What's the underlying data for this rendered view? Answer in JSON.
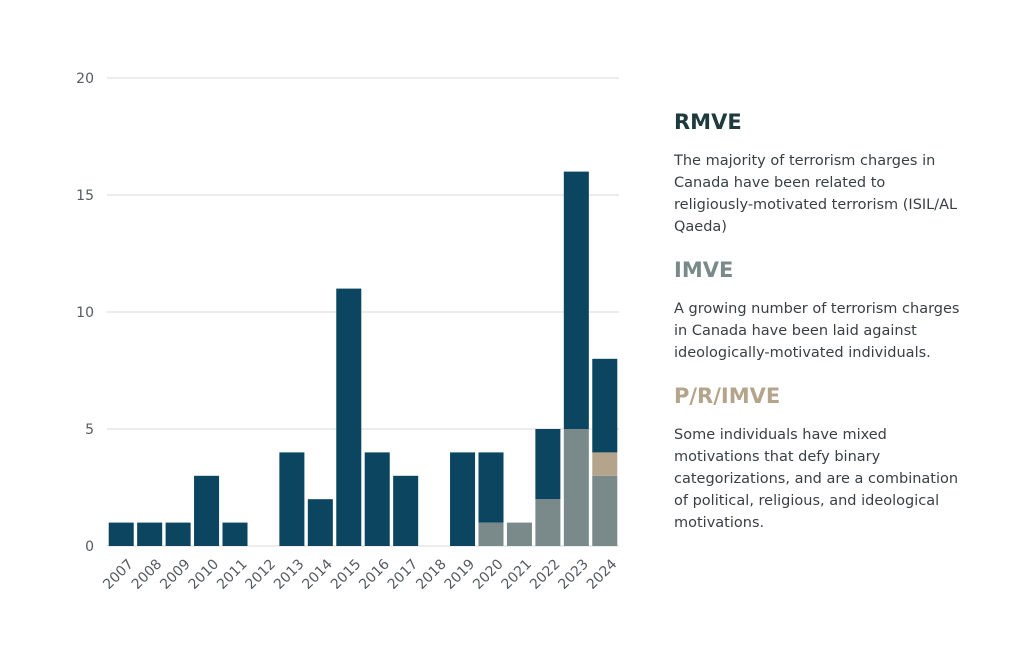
{
  "chart_data": {
    "type": "bar",
    "stacked": true,
    "categories": [
      "2007",
      "2008",
      "2009",
      "2010",
      "2011",
      "2012",
      "2013",
      "2014",
      "2015",
      "2016",
      "2017",
      "2018",
      "2019",
      "2020",
      "2021",
      "2022",
      "2023",
      "2024"
    ],
    "series": [
      {
        "name": "IMVE",
        "color": "#7a8a8a",
        "values": [
          0,
          0,
          0,
          0,
          0,
          0,
          0,
          0,
          0,
          0,
          0,
          0,
          0,
          1,
          1,
          2,
          5,
          3
        ]
      },
      {
        "name": "P/R/IMVE",
        "color": "#b5a48c",
        "values": [
          0,
          0,
          0,
          0,
          0,
          0,
          0,
          0,
          0,
          0,
          0,
          0,
          0,
          0,
          0,
          0,
          0,
          1
        ]
      },
      {
        "name": "RMVE",
        "color": "#0b4560",
        "values": [
          1,
          1,
          1,
          3,
          1,
          0,
          4,
          2,
          11,
          4,
          3,
          0,
          4,
          3,
          0,
          3,
          11,
          4
        ]
      }
    ],
    "yticks": [
      0,
      5,
      10,
      15,
      20
    ],
    "ylim": [
      0,
      20
    ],
    "grid": true
  },
  "legend": [
    {
      "title": "RMVE",
      "color": "#1e3a3d",
      "description": "The majority of terrorism charges in Canada have been related to religiously-motivated terrorism (ISIL/AL Qaeda)"
    },
    {
      "title": "IMVE",
      "color": "#7a8a8a",
      "description": "A growing number of terrorism charges in Canada have been laid against ideologically-motivated individuals."
    },
    {
      "title": "P/R/IMVE",
      "color": "#b5a48c",
      "description": "Some individuals have mixed motivations that defy binary categorizations, and are a combination of political, religious, and ideological motivations."
    }
  ]
}
